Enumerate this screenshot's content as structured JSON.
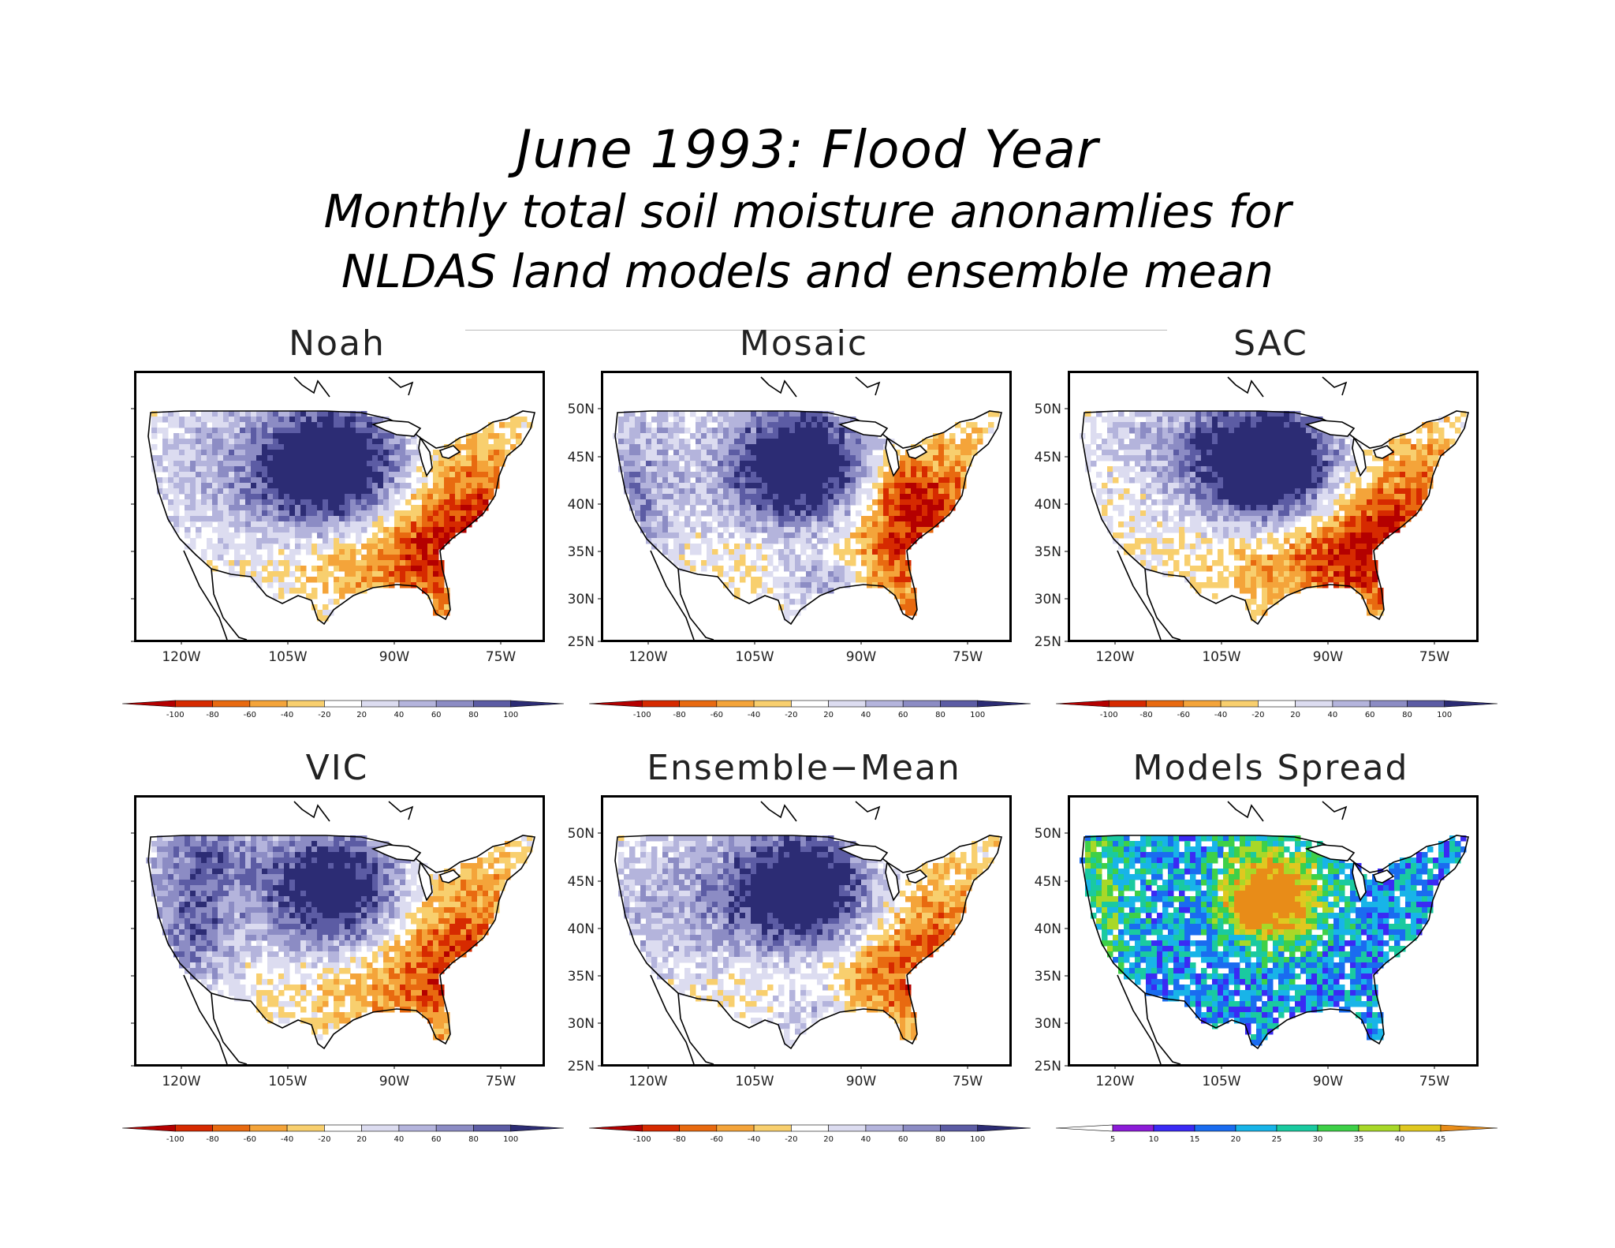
{
  "title": {
    "line1": "June 1993:  Flood Year",
    "line2": "Monthly total soil moisture anonamlies for",
    "line3": "NLDAS land models and ensemble mean"
  },
  "panels": [
    {
      "id": "noah",
      "name": "Noah",
      "lat_labels": false,
      "pattern": "noah",
      "scale": "anomaly"
    },
    {
      "id": "mosaic",
      "name": "Mosaic",
      "lat_labels": true,
      "pattern": "mosaic",
      "scale": "anomaly"
    },
    {
      "id": "sac",
      "name": "SAC",
      "lat_labels": true,
      "pattern": "sac",
      "scale": "anomaly"
    },
    {
      "id": "vic",
      "name": "VIC",
      "lat_labels": false,
      "pattern": "vic",
      "scale": "anomaly"
    },
    {
      "id": "ensemble",
      "name": "Ensemble−Mean",
      "lat_labels": true,
      "pattern": "ensemble",
      "scale": "anomaly"
    },
    {
      "id": "spread",
      "name": "Models Spread",
      "lat_labels": true,
      "pattern": "spread",
      "scale": "spread"
    }
  ],
  "axes": {
    "lon_ticks": [
      "120W",
      "105W",
      "90W",
      "75W"
    ],
    "lat_ticks": [
      "50N",
      "45N",
      "40N",
      "35N",
      "30N",
      "25N"
    ]
  },
  "scales": {
    "anomaly": {
      "labels": [
        "-100",
        "-80",
        "-60",
        "-40",
        "-20",
        "20",
        "40",
        "60",
        "80",
        "100"
      ],
      "colors": [
        "#b40000",
        "#d62a00",
        "#e86a10",
        "#f4a43a",
        "#f8cf6e",
        "#ffffff",
        "#dcdcf0",
        "#b4b4dc",
        "#8c8cc4",
        "#5c5ca4",
        "#2c2c74"
      ]
    },
    "spread": {
      "labels": [
        "5",
        "10",
        "15",
        "20",
        "25",
        "30",
        "35",
        "40",
        "45"
      ],
      "colors": [
        "#ffffff",
        "#8c1cd8",
        "#3a2af4",
        "#1a6cf0",
        "#18b4e8",
        "#1acaa0",
        "#3ed048",
        "#a8d828",
        "#e0c820",
        "#e88c18"
      ]
    }
  }
}
